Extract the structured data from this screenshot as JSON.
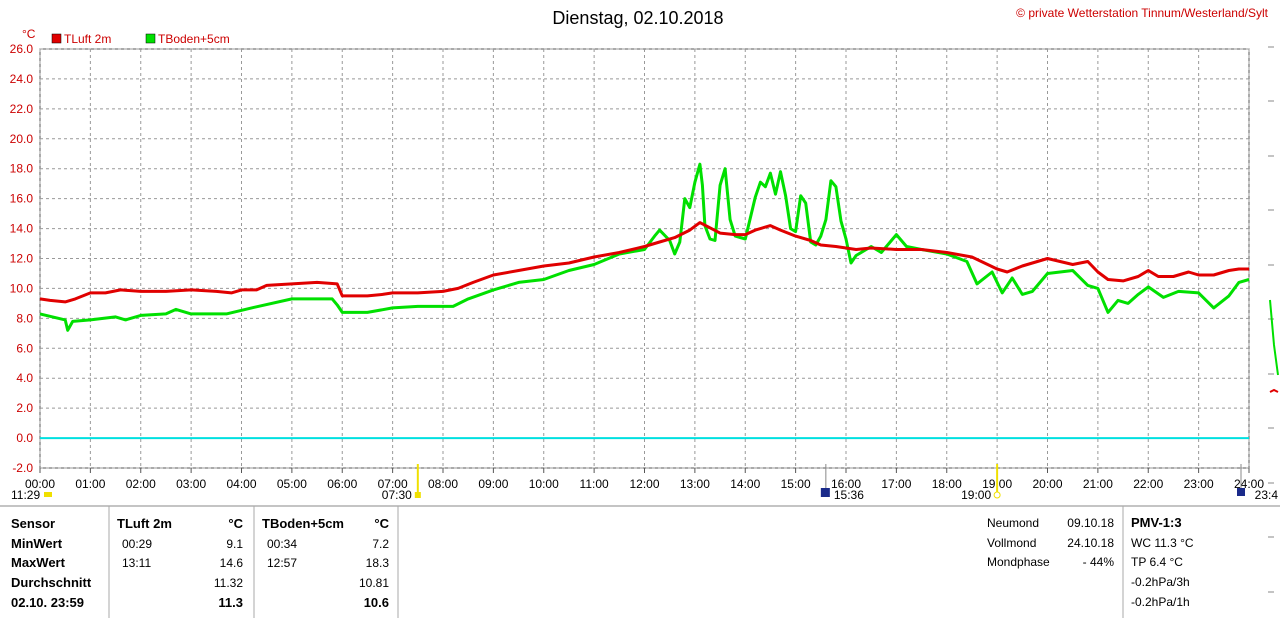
{
  "title": "Dienstag, 02.10.2018",
  "copyright": "© private Wetterstation Tinnum/Westerland/Sylt",
  "colors": {
    "luft": "#e00000",
    "boden": "#00e000",
    "zero": "#00e0e0",
    "grid": "#999999",
    "label": "#cc0000"
  },
  "chart_data": {
    "type": "line",
    "unit": "°C",
    "ylim": [
      -2,
      26
    ],
    "yticks": [
      "26.0",
      "24.0",
      "22.0",
      "20.0",
      "18.0",
      "16.0",
      "14.0",
      "12.0",
      "10.0",
      "8.0",
      "6.0",
      "4.0",
      "2.0",
      "0.0",
      "-2.0"
    ],
    "xlim": [
      0,
      24
    ],
    "xticks": [
      "00:00",
      "01:00",
      "02:00",
      "03:00",
      "04:00",
      "05:00",
      "06:00",
      "07:00",
      "08:00",
      "09:00",
      "10:00",
      "11:00",
      "12:00",
      "13:00",
      "14:00",
      "15:00",
      "16:00",
      "17:00",
      "18:00",
      "19:00",
      "20:00",
      "21:00",
      "22:00",
      "23:00",
      "24:00"
    ],
    "grid": true,
    "legend_position": "top-left",
    "series": [
      {
        "name": "TLuft 2m",
        "color": "#e00000",
        "points": [
          [
            0,
            9.3
          ],
          [
            0.2,
            9.2
          ],
          [
            0.5,
            9.1
          ],
          [
            0.7,
            9.3
          ],
          [
            1,
            9.7
          ],
          [
            1.3,
            9.7
          ],
          [
            1.6,
            9.9
          ],
          [
            2,
            9.8
          ],
          [
            2.5,
            9.8
          ],
          [
            3,
            9.9
          ],
          [
            3.5,
            9.8
          ],
          [
            3.8,
            9.7
          ],
          [
            4,
            9.9
          ],
          [
            4.3,
            9.9
          ],
          [
            4.5,
            10.2
          ],
          [
            5,
            10.3
          ],
          [
            5.5,
            10.4
          ],
          [
            5.9,
            10.3
          ],
          [
            6,
            9.5
          ],
          [
            6.5,
            9.5
          ],
          [
            6.8,
            9.6
          ],
          [
            7,
            9.7
          ],
          [
            7.5,
            9.7
          ],
          [
            8,
            9.8
          ],
          [
            8.3,
            10.0
          ],
          [
            8.6,
            10.4
          ],
          [
            9,
            10.9
          ],
          [
            9.5,
            11.2
          ],
          [
            10,
            11.5
          ],
          [
            10.5,
            11.7
          ],
          [
            11,
            12.1
          ],
          [
            11.5,
            12.4
          ],
          [
            12,
            12.8
          ],
          [
            12.3,
            13.1
          ],
          [
            12.6,
            13.4
          ],
          [
            12.9,
            13.9
          ],
          [
            13.1,
            14.4
          ],
          [
            13.5,
            13.7
          ],
          [
            13.8,
            13.6
          ],
          [
            14,
            13.6
          ],
          [
            14.2,
            13.9
          ],
          [
            14.5,
            14.2
          ],
          [
            14.7,
            13.9
          ],
          [
            15,
            13.5
          ],
          [
            15.3,
            13.2
          ],
          [
            15.5,
            12.9
          ],
          [
            15.8,
            12.8
          ],
          [
            16,
            12.7
          ],
          [
            16.2,
            12.6
          ],
          [
            16.5,
            12.7
          ],
          [
            17,
            12.6
          ],
          [
            17.5,
            12.6
          ],
          [
            18,
            12.4
          ],
          [
            18.5,
            12.1
          ],
          [
            19,
            11.3
          ],
          [
            19.2,
            11.1
          ],
          [
            19.5,
            11.5
          ],
          [
            20,
            12.0
          ],
          [
            20.5,
            11.6
          ],
          [
            20.8,
            11.8
          ],
          [
            21,
            11.1
          ],
          [
            21.2,
            10.6
          ],
          [
            21.5,
            10.5
          ],
          [
            21.8,
            10.8
          ],
          [
            22,
            11.2
          ],
          [
            22.2,
            10.8
          ],
          [
            22.5,
            10.8
          ],
          [
            22.8,
            11.1
          ],
          [
            23,
            10.9
          ],
          [
            23.3,
            10.9
          ],
          [
            23.6,
            11.2
          ],
          [
            23.8,
            11.3
          ],
          [
            24,
            11.3
          ]
        ]
      },
      {
        "name": "TBoden+5cm",
        "color": "#00e000",
        "points": [
          [
            0,
            8.3
          ],
          [
            0.5,
            7.9
          ],
          [
            0.55,
            7.2
          ],
          [
            0.65,
            7.8
          ],
          [
            1,
            7.9
          ],
          [
            1.5,
            8.1
          ],
          [
            1.7,
            7.9
          ],
          [
            2,
            8.2
          ],
          [
            2.5,
            8.3
          ],
          [
            2.7,
            8.6
          ],
          [
            3,
            8.3
          ],
          [
            3.7,
            8.3
          ],
          [
            4.2,
            8.7
          ],
          [
            5,
            9.3
          ],
          [
            5.8,
            9.3
          ],
          [
            5.9,
            8.9
          ],
          [
            6,
            8.4
          ],
          [
            6.5,
            8.4
          ],
          [
            7,
            8.7
          ],
          [
            7.5,
            8.8
          ],
          [
            8.2,
            8.8
          ],
          [
            8.5,
            9.3
          ],
          [
            9,
            9.9
          ],
          [
            9.5,
            10.4
          ],
          [
            10,
            10.6
          ],
          [
            10.5,
            11.2
          ],
          [
            11,
            11.6
          ],
          [
            11.5,
            12.3
          ],
          [
            12,
            12.6
          ],
          [
            12.2,
            13.5
          ],
          [
            12.3,
            13.9
          ],
          [
            12.5,
            13.2
          ],
          [
            12.6,
            12.3
          ],
          [
            12.7,
            13.1
          ],
          [
            12.8,
            16.0
          ],
          [
            12.9,
            15.4
          ],
          [
            13.0,
            17.1
          ],
          [
            13.1,
            18.3
          ],
          [
            13.15,
            16.9
          ],
          [
            13.2,
            14.2
          ],
          [
            13.3,
            13.3
          ],
          [
            13.4,
            13.2
          ],
          [
            13.5,
            16.9
          ],
          [
            13.6,
            18.0
          ],
          [
            13.7,
            14.6
          ],
          [
            13.8,
            13.5
          ],
          [
            14.0,
            13.3
          ],
          [
            14.2,
            16.1
          ],
          [
            14.3,
            17.1
          ],
          [
            14.4,
            16.8
          ],
          [
            14.5,
            17.7
          ],
          [
            14.6,
            16.3
          ],
          [
            14.7,
            17.8
          ],
          [
            14.8,
            16.2
          ],
          [
            14.9,
            14.0
          ],
          [
            15.0,
            13.8
          ],
          [
            15.1,
            16.2
          ],
          [
            15.2,
            15.7
          ],
          [
            15.3,
            13.1
          ],
          [
            15.4,
            12.9
          ],
          [
            15.5,
            13.5
          ],
          [
            15.6,
            14.6
          ],
          [
            15.7,
            17.2
          ],
          [
            15.8,
            16.8
          ],
          [
            15.9,
            14.5
          ],
          [
            16.0,
            13.3
          ],
          [
            16.1,
            11.7
          ],
          [
            16.2,
            12.2
          ],
          [
            16.5,
            12.8
          ],
          [
            16.7,
            12.4
          ],
          [
            17.0,
            13.6
          ],
          [
            17.2,
            12.8
          ],
          [
            17.5,
            12.6
          ],
          [
            18.0,
            12.3
          ],
          [
            18.4,
            11.8
          ],
          [
            18.6,
            10.3
          ],
          [
            18.9,
            11.1
          ],
          [
            19.1,
            9.7
          ],
          [
            19.3,
            10.7
          ],
          [
            19.5,
            9.6
          ],
          [
            19.7,
            9.8
          ],
          [
            20,
            11.0
          ],
          [
            20.5,
            11.2
          ],
          [
            20.8,
            10.2
          ],
          [
            21,
            10.0
          ],
          [
            21.2,
            8.4
          ],
          [
            21.4,
            9.2
          ],
          [
            21.6,
            9.0
          ],
          [
            21.8,
            9.6
          ],
          [
            22,
            10.1
          ],
          [
            22.3,
            9.4
          ],
          [
            22.6,
            9.8
          ],
          [
            23,
            9.7
          ],
          [
            23.3,
            8.7
          ],
          [
            23.6,
            9.5
          ],
          [
            23.8,
            10.4
          ],
          [
            24,
            10.6
          ]
        ]
      },
      {
        "name": "zero-line",
        "color": "#00e0e0",
        "points": [
          [
            0,
            0
          ],
          [
            24,
            0
          ]
        ]
      }
    ],
    "markers": [
      {
        "time": "11:29",
        "label": "11:29",
        "kind": "moonrise"
      },
      {
        "time": "07:30",
        "label": "07:30",
        "kind": "sunrise"
      },
      {
        "time": "15:36",
        "label": "15:36",
        "kind": "moonset"
      },
      {
        "time": "19:00",
        "label": "19:00",
        "kind": "sunset"
      },
      {
        "time": "23:4",
        "label": "23:4",
        "kind": "moonrise2"
      }
    ]
  },
  "legend": [
    {
      "label": "TLuft 2m",
      "color": "#e00000"
    },
    {
      "label": "TBoden+5cm",
      "color": "#00e000"
    }
  ],
  "table": {
    "headers": [
      "Sensor",
      "TLuft 2m",
      "°C",
      "TBoden+5cm",
      "°C"
    ],
    "rows": [
      {
        "label": "MinWert",
        "t1": "00:29",
        "v1": "9.1",
        "t2": "00:34",
        "v2": "7.2"
      },
      {
        "label": "MaxWert",
        "t1": "13:11",
        "v1": "14.6",
        "t2": "12:57",
        "v2": "18.3"
      },
      {
        "label": "Durchschnitt",
        "t1": "",
        "v1": "11.32",
        "t2": "",
        "v2": "10.81"
      },
      {
        "label": "02.10. 23:59",
        "t1": "",
        "v1": "11.3",
        "t2": "",
        "v2": "10.6"
      }
    ]
  },
  "moon": [
    {
      "label": "Neumond",
      "value": "09.10.18"
    },
    {
      "label": "Vollmond",
      "value": "24.10.18"
    },
    {
      "label": "Mondphase",
      "value": "- 44%"
    }
  ],
  "pmv": {
    "title": "PMV-1:3",
    "lines": [
      "WC 11.3 °C",
      "TP 6.4 °C",
      "-0.2hPa/3h",
      "-0.2hPa/1h"
    ]
  }
}
